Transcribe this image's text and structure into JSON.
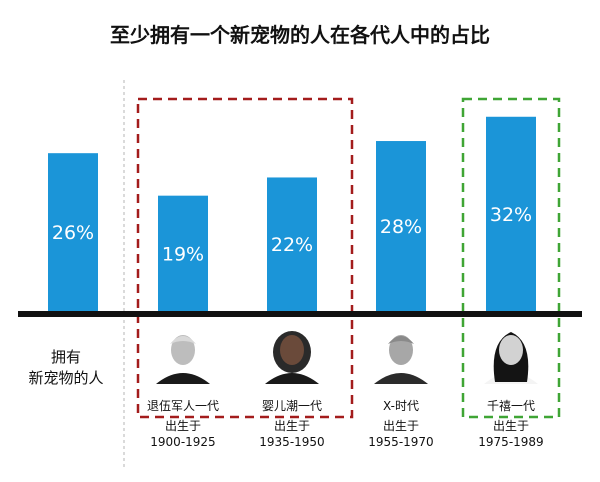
{
  "chart_data": {
    "type": "bar",
    "title": "至少拥有一个新宠物的人在各代人中的占比",
    "row_label": [
      "拥有",
      "新宠物的人"
    ],
    "ylim": [
      0,
      40
    ],
    "categories": [
      "",
      "退伍军人一代",
      "婴儿潮一代",
      "X-时代",
      "千禧一代"
    ],
    "values": [
      26,
      19,
      22,
      28,
      32
    ],
    "data_labels": [
      "26%",
      "19%",
      "22%",
      "28%",
      "32%"
    ],
    "birth_label": [
      "",
      "出生于",
      "出生于",
      "出生于",
      "出生于"
    ],
    "birth_years": [
      "",
      "1900-1925",
      "1935-1950",
      "1955-1970",
      "1975-1989"
    ],
    "highlight_groups": [
      {
        "members": [
          1,
          2
        ],
        "color": "#a31c1c",
        "style": "dashed"
      },
      {
        "members": [
          4
        ],
        "color": "#3fa535",
        "style": "dashed"
      }
    ],
    "bar_color": "#1b95d8",
    "avatar_icons": [
      "",
      "elderly-man-avatar-icon",
      "woman-avatar-icon",
      "man-avatar-icon",
      "young-woman-avatar-icon"
    ]
  }
}
